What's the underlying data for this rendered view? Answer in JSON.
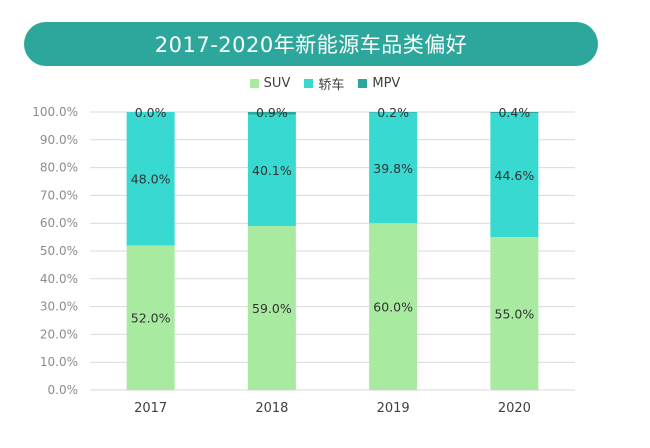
{
  "chart_data": {
    "type": "bar",
    "stacked": true,
    "title": "2017-2020年新能源车品类偏好",
    "categories": [
      "2017",
      "2018",
      "2019",
      "2020"
    ],
    "series": [
      {
        "name": "SUV",
        "color": "#a8eba0",
        "values": [
          52.0,
          59.0,
          60.0,
          55.0
        ],
        "labels": [
          "52.0%",
          "59.0%",
          "60.0%",
          "55.0%"
        ]
      },
      {
        "name": "轿车",
        "color": "#38d9d1",
        "values": [
          48.0,
          40.1,
          39.8,
          44.6
        ],
        "labels": [
          "48.0%",
          "40.1%",
          "39.8%",
          "44.6%"
        ]
      },
      {
        "name": "MPV",
        "color": "#2da79b",
        "values": [
          0.0,
          0.9,
          0.2,
          0.4
        ],
        "labels": [
          "0.0%",
          "0.9%",
          "0.2%",
          "0.4%"
        ]
      }
    ],
    "ylim": [
      0,
      100
    ],
    "yticks": [
      "0.0%",
      "10.0%",
      "20.0%",
      "30.0%",
      "40.0%",
      "50.0%",
      "60.0%",
      "70.0%",
      "80.0%",
      "90.0%",
      "100.0%"
    ],
    "xlabel": "",
    "ylabel": "",
    "legend_position": "top",
    "grid": true
  }
}
